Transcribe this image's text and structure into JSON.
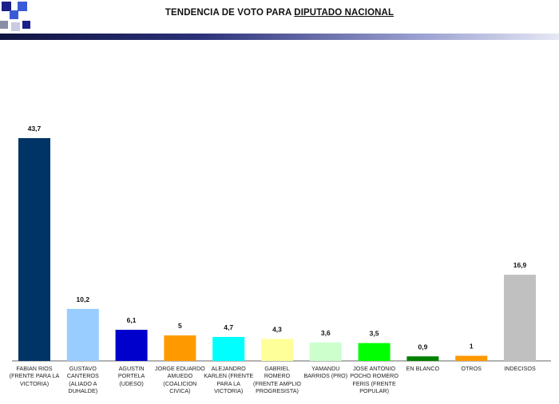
{
  "header": {
    "title_prefix": "TENDENCIA DE VOTO PARA ",
    "title_underlined": "DIPUTADO NACIONAL",
    "logo_colors": [
      "#1b1f8a",
      "#3b5bd6",
      "#8a8fa8",
      "#c9cbe0"
    ]
  },
  "chart_data": {
    "type": "bar",
    "title": "TENDENCIA DE VOTO PARA DIPUTADO NACIONAL",
    "xlabel": "",
    "ylabel": "",
    "ylim": [
      0,
      45
    ],
    "grid": false,
    "legend": "none",
    "categories": [
      "FABIAN RIOS (FRENTE PARA LA VICTORIA)",
      "GUSTAVO CANTEROS (ALIADO A DUHALDE)",
      "AGUSTIN PORTELA (UDESO)",
      "JORGE EDUARDO AMUEDO (COALICION CIVICA)",
      "ALEJANDRO KARLEN (FRENTE PARA LA VICTORIA)",
      "GABRIEL ROMERO (FRENTE AMPLIO PROGRESISTA)",
      "YAMANDU BARRIOS (PRO)",
      "JOSE ANTONIO POCHO ROMERO FERIS (FRENTE POPULAR)",
      "EN BLANCO",
      "OTROS",
      "INDECISOS"
    ],
    "values": [
      43.7,
      10.2,
      6.1,
      5,
      4.7,
      4.3,
      3.6,
      3.5,
      0.9,
      1,
      16.9
    ],
    "value_labels": [
      "43,7",
      "10,2",
      "6,1",
      "5",
      "4,7",
      "4,3",
      "3,6",
      "3,5",
      "0,9",
      "1",
      "16,9"
    ],
    "colors": [
      "#003366",
      "#99ccff",
      "#0000cc",
      "#ff9900",
      "#00ffff",
      "#ffff99",
      "#ccffcc",
      "#00ff00",
      "#008000",
      "#ff9900",
      "#c0c0c0"
    ]
  }
}
